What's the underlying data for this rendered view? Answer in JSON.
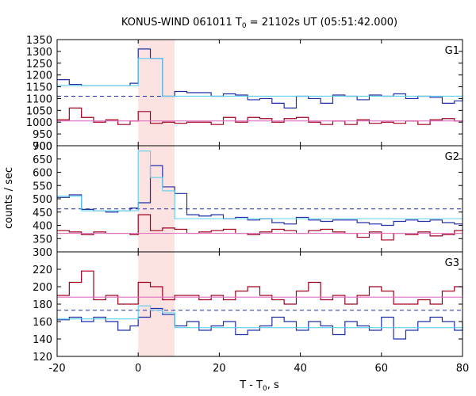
{
  "title": {
    "main": "KONUS-WIND 061011 T",
    "sub": "0",
    "rest": " = 21102s UT (05:51:42.000)"
  },
  "x_axis": {
    "label_main": "T - T",
    "label_sub": "0",
    "label_rest": ", s"
  },
  "y_axis_label": "counts / sec",
  "colors": {
    "dark_red": "#a0001e",
    "dark_blue": "#1e2fa8",
    "light_blue": "#5ad0ee",
    "pink": "#e070c0",
    "band": "#fde2e2"
  },
  "chart_data": {
    "type": "line",
    "xlim": [
      -20,
      80
    ],
    "x_ticks": [
      -20,
      0,
      20,
      40,
      60,
      80
    ],
    "highlight_interval": [
      0,
      9
    ],
    "panels": [
      {
        "label": "G1",
        "ylim": [
          900,
          1350
        ],
        "y_ticks": [
          900,
          950,
          1000,
          1050,
          1100,
          1150,
          1200,
          1250,
          1300,
          1350
        ],
        "background_fit": 1110,
        "red_background": 1005,
        "series": [
          {
            "color": "dark_blue",
            "x": [
              -20,
              -17,
              -14,
              -11,
              -8,
              -5,
              -2,
              0,
              3,
              6,
              9,
              12,
              15,
              18,
              21,
              24,
              27,
              30,
              33,
              36,
              39,
              42,
              45,
              48,
              51,
              54,
              57,
              60,
              63,
              66,
              69,
              72,
              75,
              78,
              80
            ],
            "y": [
              1180,
              1160,
              1155,
              1155,
              1155,
              1155,
              1165,
              1310,
              1270,
              1110,
              1130,
              1125,
              1125,
              1110,
              1120,
              1115,
              1095,
              1100,
              1080,
              1060,
              1110,
              1100,
              1080,
              1115,
              1110,
              1095,
              1115,
              1110,
              1120,
              1100,
              1110,
              1105,
              1080,
              1090,
              1105
            ]
          },
          {
            "color": "light_blue",
            "x": [
              -20,
              -17,
              -14,
              -11,
              -8,
              -5,
              -2,
              0,
              3,
              6,
              9,
              80
            ],
            "y": [
              1155,
              1155,
              1155,
              1155,
              1155,
              1155,
              1155,
              1270,
              1270,
              1110,
              1110,
              1110
            ]
          },
          {
            "color": "dark_red",
            "x": [
              -20,
              -17,
              -14,
              -11,
              -8,
              -5,
              -2,
              0,
              3,
              6,
              9,
              12,
              15,
              18,
              21,
              24,
              27,
              30,
              33,
              36,
              39,
              42,
              45,
              48,
              51,
              54,
              57,
              60,
              63,
              66,
              69,
              72,
              75,
              78,
              80
            ],
            "y": [
              1010,
              1060,
              1020,
              1000,
              1010,
              990,
              1005,
              1045,
              995,
              1000,
              995,
              1000,
              1000,
              990,
              1020,
              1000,
              1020,
              1015,
              1000,
              1015,
              1020,
              1000,
              990,
              1005,
              990,
              1010,
              995,
              1000,
              995,
              1005,
              990,
              1010,
              1015,
              1005,
              1000
            ]
          },
          {
            "color": "pink",
            "x": [
              -20,
              80
            ],
            "y": [
              1005,
              1005
            ]
          }
        ]
      },
      {
        "label": "G2",
        "ylim": [
          300,
          700
        ],
        "y_ticks": [
          300,
          350,
          400,
          450,
          500,
          550,
          600,
          650,
          700
        ],
        "background_fit": 462,
        "red_background": 370,
        "series": [
          {
            "color": "dark_blue",
            "x": [
              -20,
              -17,
              -14,
              -11,
              -8,
              -5,
              -2,
              0,
              3,
              6,
              9,
              12,
              15,
              18,
              21,
              24,
              27,
              30,
              33,
              36,
              39,
              42,
              45,
              48,
              51,
              54,
              57,
              60,
              63,
              66,
              69,
              72,
              75,
              78,
              80
            ],
            "y": [
              505,
              515,
              460,
              455,
              450,
              455,
              465,
              485,
              625,
              545,
              520,
              440,
              435,
              440,
              425,
              430,
              420,
              425,
              410,
              405,
              430,
              420,
              415,
              420,
              420,
              410,
              405,
              400,
              415,
              420,
              415,
              420,
              410,
              405,
              405
            ]
          },
          {
            "color": "light_blue",
            "x": [
              -20,
              -17,
              -14,
              -11,
              -8,
              -5,
              -2,
              0,
              3,
              6,
              9,
              80
            ],
            "y": [
              510,
              510,
              455,
              455,
              455,
              455,
              455,
              680,
              580,
              530,
              425,
              425
            ]
          },
          {
            "color": "dark_red",
            "x": [
              -20,
              -17,
              -14,
              -11,
              -8,
              -5,
              -2,
              0,
              3,
              6,
              9,
              12,
              15,
              18,
              21,
              24,
              27,
              30,
              33,
              36,
              39,
              42,
              45,
              48,
              51,
              54,
              57,
              60,
              63,
              66,
              69,
              72,
              75,
              78,
              80
            ],
            "y": [
              380,
              375,
              365,
              375,
              370,
              370,
              365,
              440,
              380,
              390,
              385,
              370,
              375,
              380,
              385,
              370,
              365,
              375,
              385,
              380,
              370,
              380,
              385,
              375,
              370,
              355,
              375,
              345,
              370,
              365,
              375,
              360,
              365,
              380,
              385
            ]
          },
          {
            "color": "pink",
            "x": [
              -20,
              80
            ],
            "y": [
              370,
              370
            ]
          }
        ]
      },
      {
        "label": "G3",
        "ylim": [
          120,
          240
        ],
        "y_ticks": [
          120,
          140,
          160,
          180,
          200,
          220
        ],
        "background_fit": 173,
        "red_background": 188,
        "series": [
          {
            "color": "dark_red",
            "x": [
              -20,
              -17,
              -14,
              -11,
              -8,
              -5,
              -2,
              0,
              3,
              6,
              9,
              12,
              15,
              18,
              21,
              24,
              27,
              30,
              33,
              36,
              39,
              42,
              45,
              48,
              51,
              54,
              57,
              60,
              63,
              66,
              69,
              72,
              75,
              78,
              80
            ],
            "y": [
              190,
              205,
              218,
              185,
              190,
              180,
              180,
              205,
              200,
              185,
              190,
              190,
              185,
              190,
              185,
              195,
              200,
              190,
              185,
              180,
              195,
              205,
              185,
              190,
              180,
              190,
              200,
              195,
              180,
              180,
              185,
              180,
              195,
              200,
              190
            ]
          },
          {
            "color": "pink",
            "x": [
              -20,
              80
            ],
            "y": [
              188,
              188
            ]
          },
          {
            "color": "dark_blue",
            "x": [
              -20,
              -17,
              -14,
              -11,
              -8,
              -5,
              -2,
              0,
              3,
              6,
              9,
              12,
              15,
              18,
              21,
              24,
              27,
              30,
              33,
              36,
              39,
              42,
              45,
              48,
              51,
              54,
              57,
              60,
              63,
              66,
              69,
              72,
              75,
              78,
              80
            ],
            "y": [
              162,
              165,
              160,
              165,
              160,
              150,
              155,
              165,
              175,
              168,
              155,
              160,
              150,
              155,
              160,
              145,
              150,
              155,
              165,
              160,
              150,
              160,
              155,
              145,
              160,
              155,
              150,
              165,
              140,
              150,
              160,
              165,
              160,
              150,
              160
            ]
          },
          {
            "color": "light_blue",
            "x": [
              -20,
              -17,
              -14,
              -11,
              -8,
              -5,
              -2,
              0,
              3,
              6,
              9,
              80
            ],
            "y": [
              163,
              163,
              163,
              163,
              163,
              163,
              163,
              178,
              173,
              170,
              153,
              153
            ]
          }
        ]
      }
    ]
  }
}
